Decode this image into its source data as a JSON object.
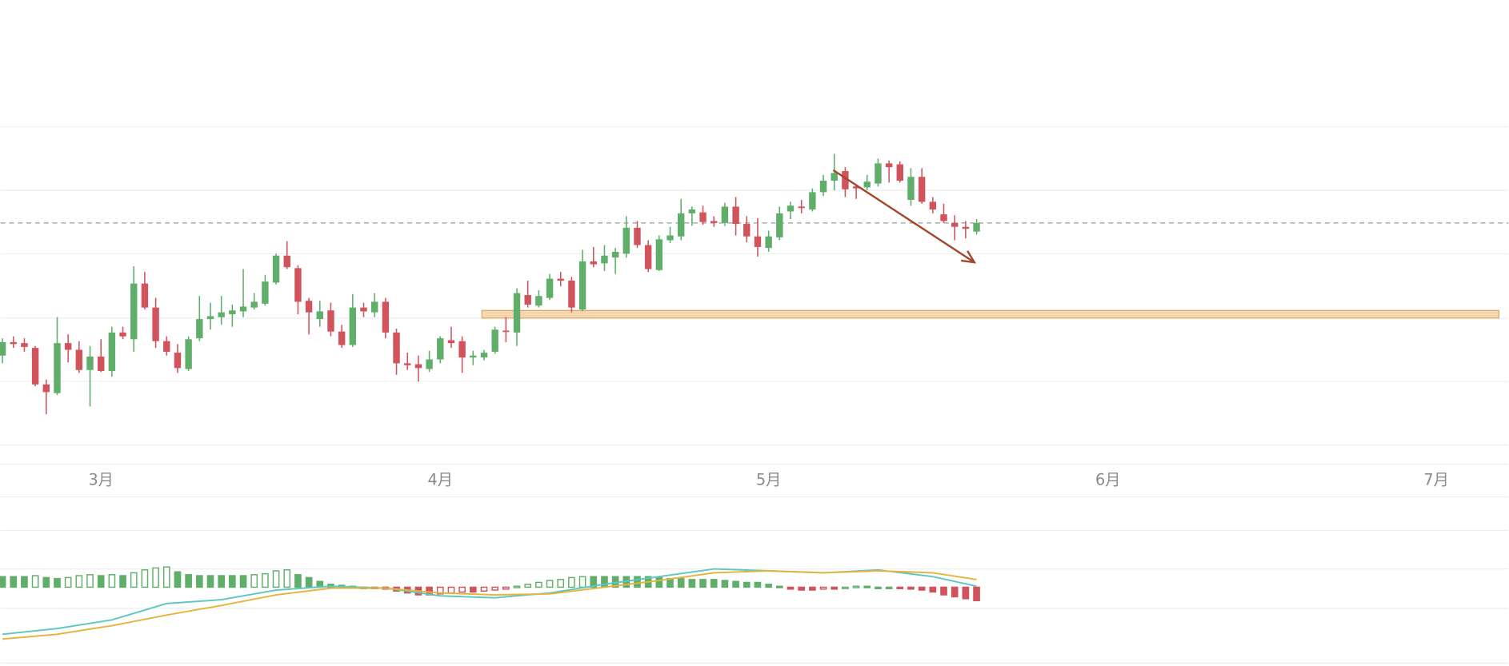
{
  "chart_data": [
    {
      "type": "candlestick",
      "xlim": [
        -0.18,
        137.6
      ],
      "ylim": [
        0,
        331
      ],
      "xticks": [
        {
          "value": 9,
          "label": "3月"
        },
        {
          "value": 40,
          "label": "4月"
        },
        {
          "value": 70,
          "label": "5月"
        },
        {
          "value": 101,
          "label": "6月"
        },
        {
          "value": 131,
          "label": "7月"
        }
      ],
      "up_color": "#5fae6a",
      "down_color": "#d1535b",
      "last_price_line": true,
      "zone": {
        "low": 132,
        "high": 140,
        "x_start": 43.8,
        "color": "#f0c896"
      },
      "arrow": {
        "x": [
          75.9,
          88.8
        ],
        "y": [
          286,
          190
        ],
        "color": "#a5452e"
      },
      "candles": [
        [
          93,
          111,
          85,
          107
        ],
        [
          107,
          113,
          101,
          105
        ],
        [
          106,
          111,
          97,
          102
        ],
        [
          101,
          103,
          61,
          63
        ],
        [
          63,
          68,
          32,
          55
        ],
        [
          54,
          133,
          52,
          106
        ],
        [
          106,
          115,
          86,
          99
        ],
        [
          99,
          108,
          75,
          78
        ],
        [
          78,
          103,
          40,
          92
        ],
        [
          92,
          110,
          76,
          77
        ],
        [
          77,
          123,
          71,
          117
        ],
        [
          117,
          123,
          110,
          113
        ],
        [
          110,
          186,
          97,
          168
        ],
        [
          168,
          180,
          141,
          143
        ],
        [
          143,
          153,
          101,
          108
        ],
        [
          108,
          113,
          93,
          97
        ],
        [
          96,
          105,
          75,
          80
        ],
        [
          79,
          113,
          77,
          110
        ],
        [
          111,
          155,
          108,
          131
        ],
        [
          131,
          148,
          120,
          134
        ],
        [
          133,
          155,
          125,
          138
        ],
        [
          136,
          146,
          123,
          140
        ],
        [
          139,
          183,
          133,
          144
        ],
        [
          143,
          158,
          141,
          149
        ],
        [
          147,
          177,
          145,
          170
        ],
        [
          169,
          199,
          167,
          197
        ],
        [
          197,
          212,
          183,
          185
        ],
        [
          184,
          187,
          136,
          149
        ],
        [
          150,
          153,
          115,
          138
        ],
        [
          131,
          150,
          123,
          139
        ],
        [
          140,
          148,
          113,
          118
        ],
        [
          118,
          125,
          101,
          104
        ],
        [
          104,
          157,
          102,
          143
        ],
        [
          143,
          148,
          133,
          139
        ],
        [
          138,
          158,
          133,
          149
        ],
        [
          149,
          153,
          111,
          117
        ],
        [
          117,
          121,
          73,
          85
        ],
        [
          85,
          96,
          78,
          83
        ],
        [
          84,
          93,
          66,
          80
        ],
        [
          79,
          98,
          76,
          89
        ],
        [
          89,
          113,
          85,
          111
        ],
        [
          109,
          123,
          101,
          106
        ],
        [
          108,
          113,
          75,
          91
        ],
        [
          91,
          98,
          83,
          93
        ],
        [
          91,
          99,
          88,
          96
        ],
        [
          97,
          123,
          95,
          120
        ],
        [
          119,
          133,
          107,
          118
        ],
        [
          117,
          163,
          103,
          158
        ],
        [
          156,
          171,
          143,
          146
        ],
        [
          145,
          161,
          143,
          155
        ],
        [
          153,
          178,
          151,
          173
        ],
        [
          173,
          180,
          165,
          171
        ],
        [
          171,
          175,
          138,
          143
        ],
        [
          141,
          203,
          139,
          191
        ],
        [
          191,
          206,
          185,
          188
        ],
        [
          189,
          208,
          181,
          197
        ],
        [
          195,
          205,
          178,
          201
        ],
        [
          199,
          238,
          195,
          226
        ],
        [
          226,
          233,
          205,
          208
        ],
        [
          208,
          213,
          180,
          183
        ],
        [
          182,
          218,
          181,
          214
        ],
        [
          213,
          227,
          210,
          218
        ],
        [
          217,
          256,
          213,
          241
        ],
        [
          241,
          248,
          228,
          245
        ],
        [
          242,
          249,
          229,
          232
        ],
        [
          233,
          238,
          227,
          231
        ],
        [
          231,
          252,
          228,
          248
        ],
        [
          248,
          258,
          218,
          230
        ],
        [
          230,
          238,
          211,
          217
        ],
        [
          217,
          236,
          196,
          206
        ],
        [
          205,
          223,
          201,
          217
        ],
        [
          216,
          248,
          213,
          241
        ],
        [
          243,
          253,
          235,
          249
        ],
        [
          248,
          255,
          241,
          247
        ],
        [
          245,
          267,
          243,
          263
        ],
        [
          263,
          281,
          259,
          275
        ],
        [
          275,
          303,
          265,
          283
        ],
        [
          285,
          289,
          258,
          266
        ],
        [
          269,
          271,
          256,
          267
        ],
        [
          268,
          281,
          265,
          274
        ],
        [
          272,
          298,
          269,
          293
        ],
        [
          293,
          296,
          273,
          289
        ],
        [
          292,
          295,
          273,
          275
        ],
        [
          255,
          288,
          249,
          279
        ],
        [
          279,
          288,
          251,
          253
        ],
        [
          253,
          258,
          241,
          245
        ],
        [
          240,
          251,
          231,
          233
        ],
        [
          231,
          239,
          213,
          227
        ],
        [
          227,
          233,
          215,
          225
        ],
        [
          222,
          235,
          219,
          231
        ]
      ]
    },
    {
      "type": "macd",
      "xlim": [
        -0.18,
        137.6
      ],
      "ylim": [
        -81,
        94
      ],
      "up_color": "#5fae6a",
      "down_color": "#d1535b",
      "histogram": [
        11,
        11,
        11,
        12,
        10,
        9,
        10,
        12,
        13,
        12,
        13,
        12,
        15,
        18,
        20,
        21,
        16,
        13,
        12,
        12,
        12,
        12,
        12,
        13,
        14,
        17,
        18,
        13,
        10,
        6,
        3,
        2,
        1,
        -1,
        -1,
        -2,
        -4,
        -6,
        -8,
        -8,
        -7,
        -6,
        -5,
        -5,
        -4,
        -3,
        -2,
        1,
        3,
        5,
        7,
        8,
        10,
        11,
        11,
        11,
        11,
        11,
        11,
        11,
        10,
        9,
        9,
        8,
        8,
        8,
        7,
        6,
        5,
        5,
        3,
        1,
        -2,
        -3,
        -3,
        -2,
        -2,
        0,
        1,
        1,
        0,
        0,
        -1,
        -2,
        -3,
        -5,
        -8,
        -10,
        -12,
        -14
      ],
      "series": [
        {
          "color": "#5cc8c0",
          "x": [
            0,
            5,
            10,
            15,
            20,
            25,
            30,
            35,
            40,
            45,
            50,
            55,
            60,
            65,
            70,
            75,
            80,
            85,
            89
          ],
          "values": [
            -49,
            -43,
            -34,
            -17,
            -13,
            -3,
            1,
            -1,
            -9,
            -11,
            -6,
            3,
            11,
            19,
            17,
            15,
            18,
            11,
            1
          ]
        },
        {
          "color": "#e6b43c",
          "x": [
            0,
            5,
            10,
            15,
            20,
            25,
            30,
            35,
            40,
            45,
            50,
            55,
            60,
            65,
            70,
            75,
            80,
            85,
            89
          ],
          "values": [
            -54,
            -49,
            -40,
            -29,
            -19,
            -8,
            -1,
            -1,
            -6,
            -8,
            -7,
            0,
            7,
            15,
            17,
            15,
            17,
            15,
            8
          ]
        }
      ]
    }
  ]
}
